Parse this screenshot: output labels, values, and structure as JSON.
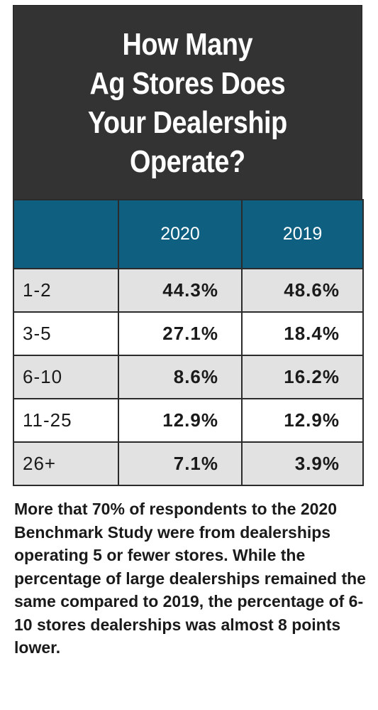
{
  "title": "How Many\nAg Stores Does\nYour Dealership\nOperate?",
  "table": {
    "corner": "",
    "columns": [
      "2020",
      "2019"
    ],
    "rows": [
      {
        "label": "1-2",
        "v2020": "44.3%",
        "v2019": "48.6%"
      },
      {
        "label": "3-5",
        "v2020": "27.1%",
        "v2019": "18.4%"
      },
      {
        "label": "6-10",
        "v2020": "8.6%",
        "v2019": "16.2%"
      },
      {
        "label": "11-25",
        "v2020": "12.9%",
        "v2019": "12.9%"
      },
      {
        "label": "26+",
        "v2020": "7.1%",
        "v2019": "3.9%"
      }
    ]
  },
  "caption": "More that 70% of respondents to the 2020 Benchmark Study were from dealerships operating 5 or fewer stores. While the percentage of large dealerships remained the same compared to 2019, the percentage of 6-10 stores dealerships was almost 8 points lower.",
  "colors": {
    "title_bg": "#333333",
    "header_bg": "#0f5f80",
    "row_shade": "#e2e2e2"
  }
}
